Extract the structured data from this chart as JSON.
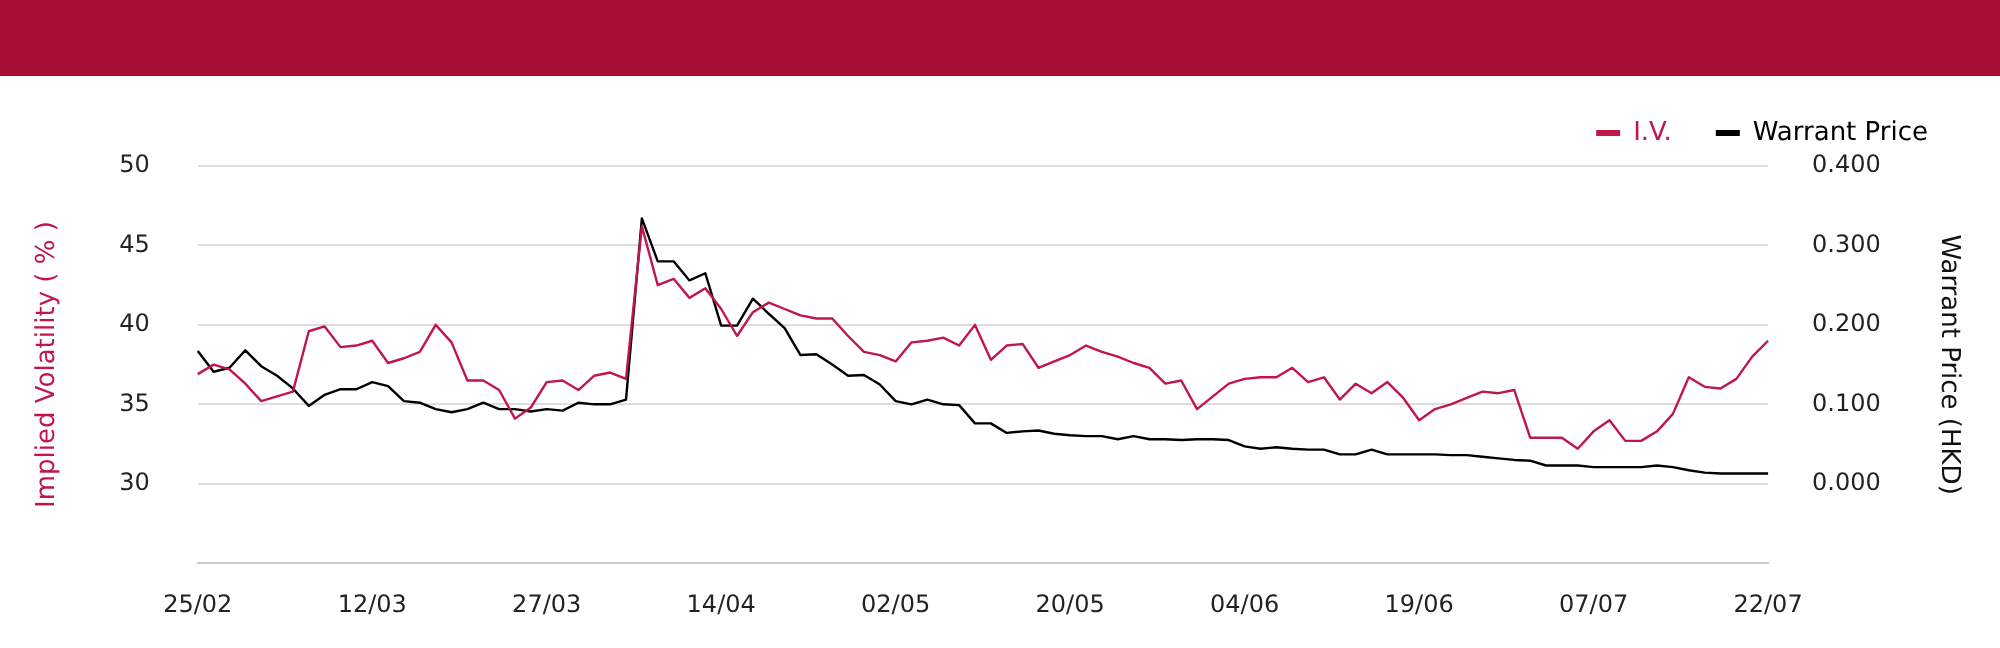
{
  "chart_data": {
    "type": "line",
    "categories": [
      "25/02",
      null,
      null,
      null,
      null,
      null,
      null,
      null,
      null,
      null,
      null,
      "12/03",
      null,
      null,
      null,
      null,
      null,
      null,
      null,
      null,
      null,
      null,
      "27/03",
      null,
      null,
      null,
      null,
      null,
      null,
      null,
      null,
      null,
      null,
      "14/04",
      null,
      null,
      null,
      null,
      null,
      null,
      null,
      null,
      null,
      null,
      "02/05",
      null,
      null,
      null,
      null,
      null,
      null,
      null,
      null,
      null,
      null,
      "20/05",
      null,
      null,
      null,
      null,
      null,
      null,
      null,
      null,
      null,
      null,
      "04/06",
      null,
      null,
      null,
      null,
      null,
      null,
      null,
      null,
      null,
      null,
      "19/06",
      null,
      null,
      null,
      null,
      null,
      null,
      null,
      null,
      null,
      null,
      "07/07",
      null,
      null,
      null,
      null,
      null,
      null,
      null,
      null,
      null,
      null,
      "22/07"
    ],
    "series": [
      {
        "name": "I.V.",
        "color": "#c0174a",
        "values": [
          36.9,
          37.5,
          37.2,
          36.3,
          35.2,
          35.5,
          35.8,
          39.6,
          39.9,
          38.6,
          38.7,
          39.0,
          37.6,
          37.9,
          38.3,
          40.0,
          38.9,
          36.5,
          36.5,
          35.9,
          34.1,
          34.8,
          36.4,
          36.5,
          35.9,
          36.8,
          37.0,
          36.6,
          46.2,
          42.5,
          42.9,
          41.7,
          42.3,
          41.0,
          39.3,
          40.8,
          41.4,
          41.0,
          40.6,
          40.4,
          40.4,
          39.3,
          38.3,
          38.1,
          37.7,
          38.9,
          39.0,
          39.2,
          38.7,
          40.0,
          37.8,
          38.7,
          38.8,
          37.3,
          37.7,
          38.1,
          38.7,
          38.3,
          38.0,
          37.6,
          37.3,
          36.3,
          36.5,
          34.7,
          35.5,
          36.3,
          36.6,
          36.7,
          36.7,
          37.3,
          36.4,
          36.7,
          35.3,
          36.3,
          35.7,
          36.4,
          35.4,
          34.0,
          34.7,
          35.0,
          35.4,
          35.8,
          35.7,
          35.9,
          32.9,
          32.9,
          32.9,
          32.2,
          33.3,
          34.0,
          32.7,
          32.7,
          33.3,
          34.4,
          36.7,
          36.1,
          36.0,
          36.6,
          38.0,
          39.0
        ]
      },
      {
        "name": "Warrant Price",
        "color": "#000000",
        "axis": "y2",
        "values": [
          0.167,
          0.141,
          0.146,
          0.168,
          0.148,
          0.136,
          0.12,
          0.098,
          0.112,
          0.119,
          0.119,
          0.128,
          0.123,
          0.104,
          0.102,
          0.094,
          0.09,
          0.094,
          0.102,
          0.094,
          0.094,
          0.091,
          0.094,
          0.092,
          0.102,
          0.1,
          0.1,
          0.106,
          0.334,
          0.28,
          0.28,
          0.256,
          0.265,
          0.199,
          0.199,
          0.233,
          0.214,
          0.196,
          0.162,
          0.163,
          0.15,
          0.136,
          0.137,
          0.125,
          0.104,
          0.1,
          0.106,
          0.1,
          0.099,
          0.076,
          0.076,
          0.064,
          0.066,
          0.067,
          0.063,
          0.061,
          0.06,
          0.06,
          0.056,
          0.06,
          0.056,
          0.056,
          0.055,
          0.056,
          0.056,
          0.055,
          0.047,
          0.044,
          0.046,
          0.044,
          0.043,
          0.043,
          0.037,
          0.037,
          0.043,
          0.037,
          0.037,
          0.037,
          0.037,
          0.036,
          0.036,
          0.034,
          0.032,
          0.03,
          0.029,
          0.023,
          0.023,
          0.023,
          0.021,
          0.021,
          0.021,
          0.021,
          0.023,
          0.021,
          0.017,
          0.014,
          0.013,
          0.013,
          0.013,
          0.013
        ]
      }
    ],
    "ylabel": "Implied Volatility ( % )",
    "y2label": "Warrant Price (HKD)",
    "ylim": [
      25,
      50
    ],
    "yticks": [
      30,
      35,
      40,
      45,
      50
    ],
    "y2lim": [
      -0.1,
      0.4
    ],
    "y2ticks": [
      {
        "value": 0,
        "label": "0.000"
      },
      {
        "value": 0.1,
        "label": "0.100"
      },
      {
        "value": 0.2,
        "label": "0.200"
      },
      {
        "value": 0.3,
        "label": "0.300"
      },
      {
        "value": 0.4,
        "label": "0.400"
      }
    ],
    "grid": "y",
    "legend": "top right",
    "marker": "none",
    "line_style": "solid"
  }
}
